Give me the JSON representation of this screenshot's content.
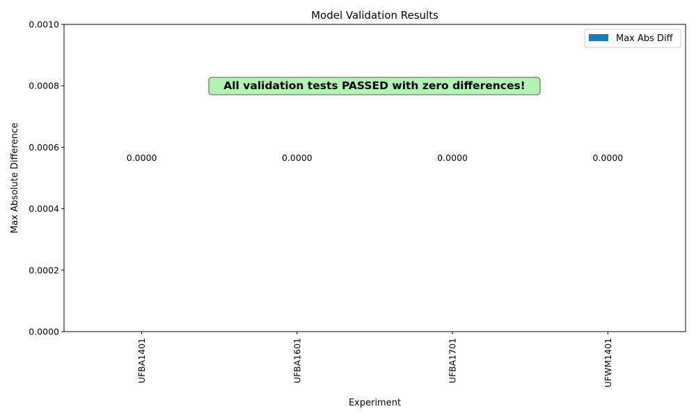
{
  "chart_data": {
    "type": "bar",
    "title": "Model Validation Results",
    "xlabel": "Experiment",
    "ylabel": "Max Absolute Difference",
    "categories": [
      "UFBA1401",
      "UFBA1601",
      "UFBA1701",
      "UFWM1401"
    ],
    "series": [
      {
        "name": "Max Abs Diff",
        "values": [
          0,
          0,
          0,
          0
        ],
        "color": "#1f77b4"
      }
    ],
    "data_labels": [
      "0.0000",
      "0.0000",
      "0.0000",
      "0.0000"
    ],
    "ylim": [
      0,
      0.001
    ],
    "yticks": [
      "0.0000",
      "0.0002",
      "0.0004",
      "0.0006",
      "0.0008",
      "0.0010"
    ],
    "ytick_values": [
      0,
      0.0002,
      0.0004,
      0.0006,
      0.0008,
      0.001
    ],
    "grid": false,
    "legend_position": "top-right",
    "annotation": {
      "text": "All validation tests PASSED with zero differences!",
      "background": "#b3f2b3",
      "border": "#555555"
    }
  }
}
